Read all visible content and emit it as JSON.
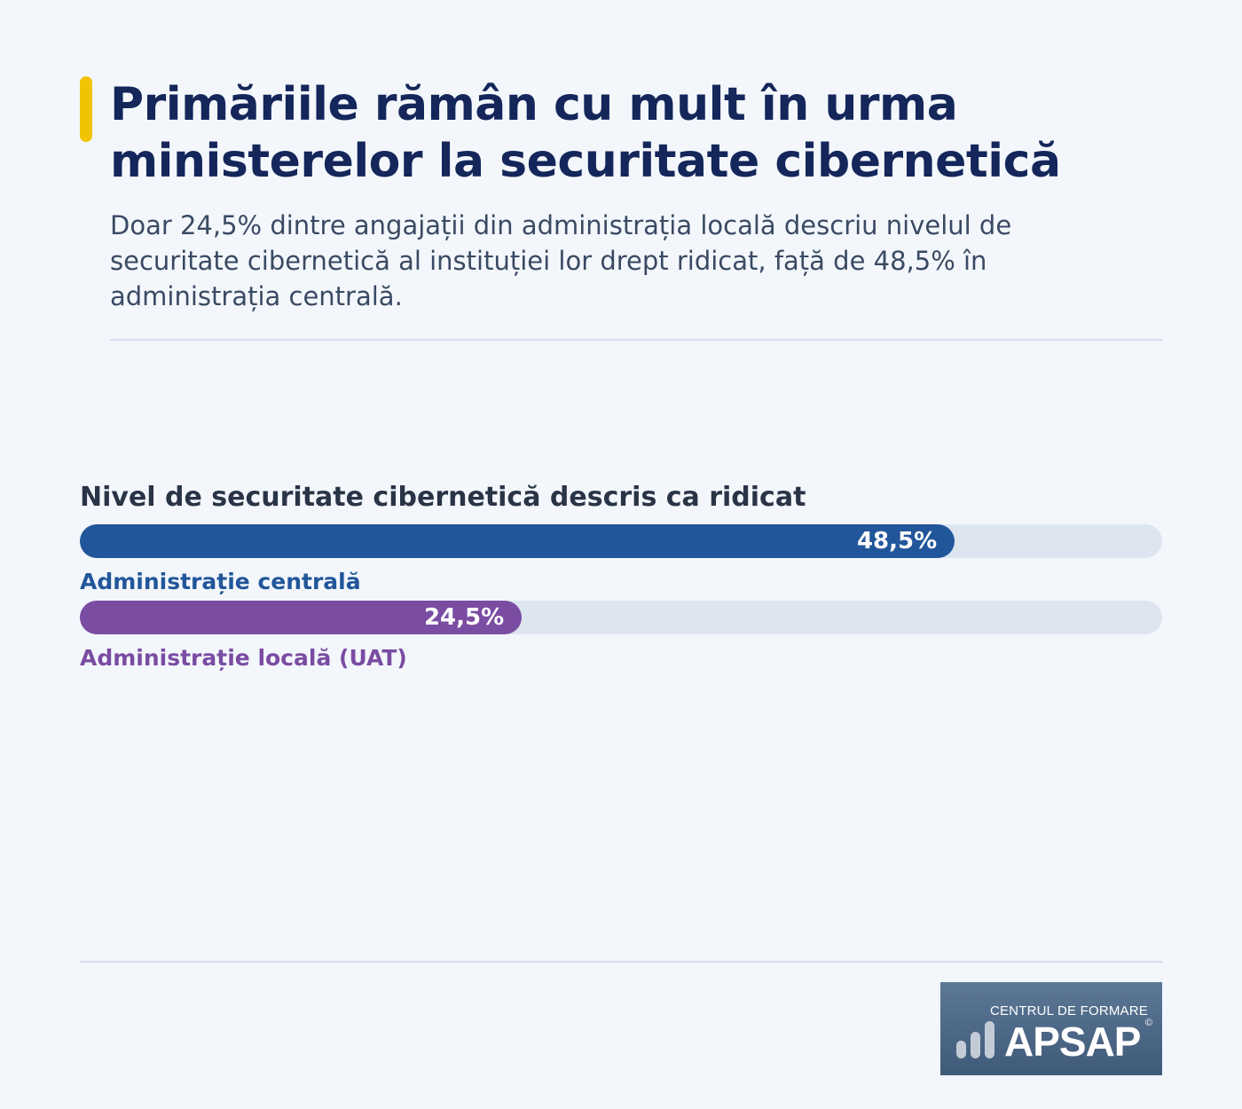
{
  "header": {
    "title_lines": [
      "Primăriile rămân cu mult în urma",
      "ministerelor la securitate cibernetică"
    ],
    "subtitle_lines": [
      "Doar 24,5% dintre angajații din administrația locală descriu nivelul de",
      "securitate cibernetică al instituției lor drept ridicat, față de 48,5% în",
      "administrația centrală."
    ]
  },
  "chart_data": {
    "type": "bar",
    "orientation": "horizontal",
    "title": "Nivel de securitate cibernetică descris ca ridicat",
    "categories": [
      "Administrație centrală",
      "Administrație locală (UAT)"
    ],
    "values": [
      48.5,
      24.5
    ],
    "value_labels": [
      "48,5%",
      "24,5%"
    ],
    "colors": [
      "#22569a",
      "#7a4ca2"
    ],
    "track_color": "#dde5f0",
    "xlim": [
      0,
      60
    ],
    "grid": false,
    "legend": "none"
  },
  "logo": {
    "small_text": "CENTRUL DE FORMARE",
    "big_text": "APSAP",
    "copyright": "©",
    "icon": "bar-chart-icon"
  }
}
